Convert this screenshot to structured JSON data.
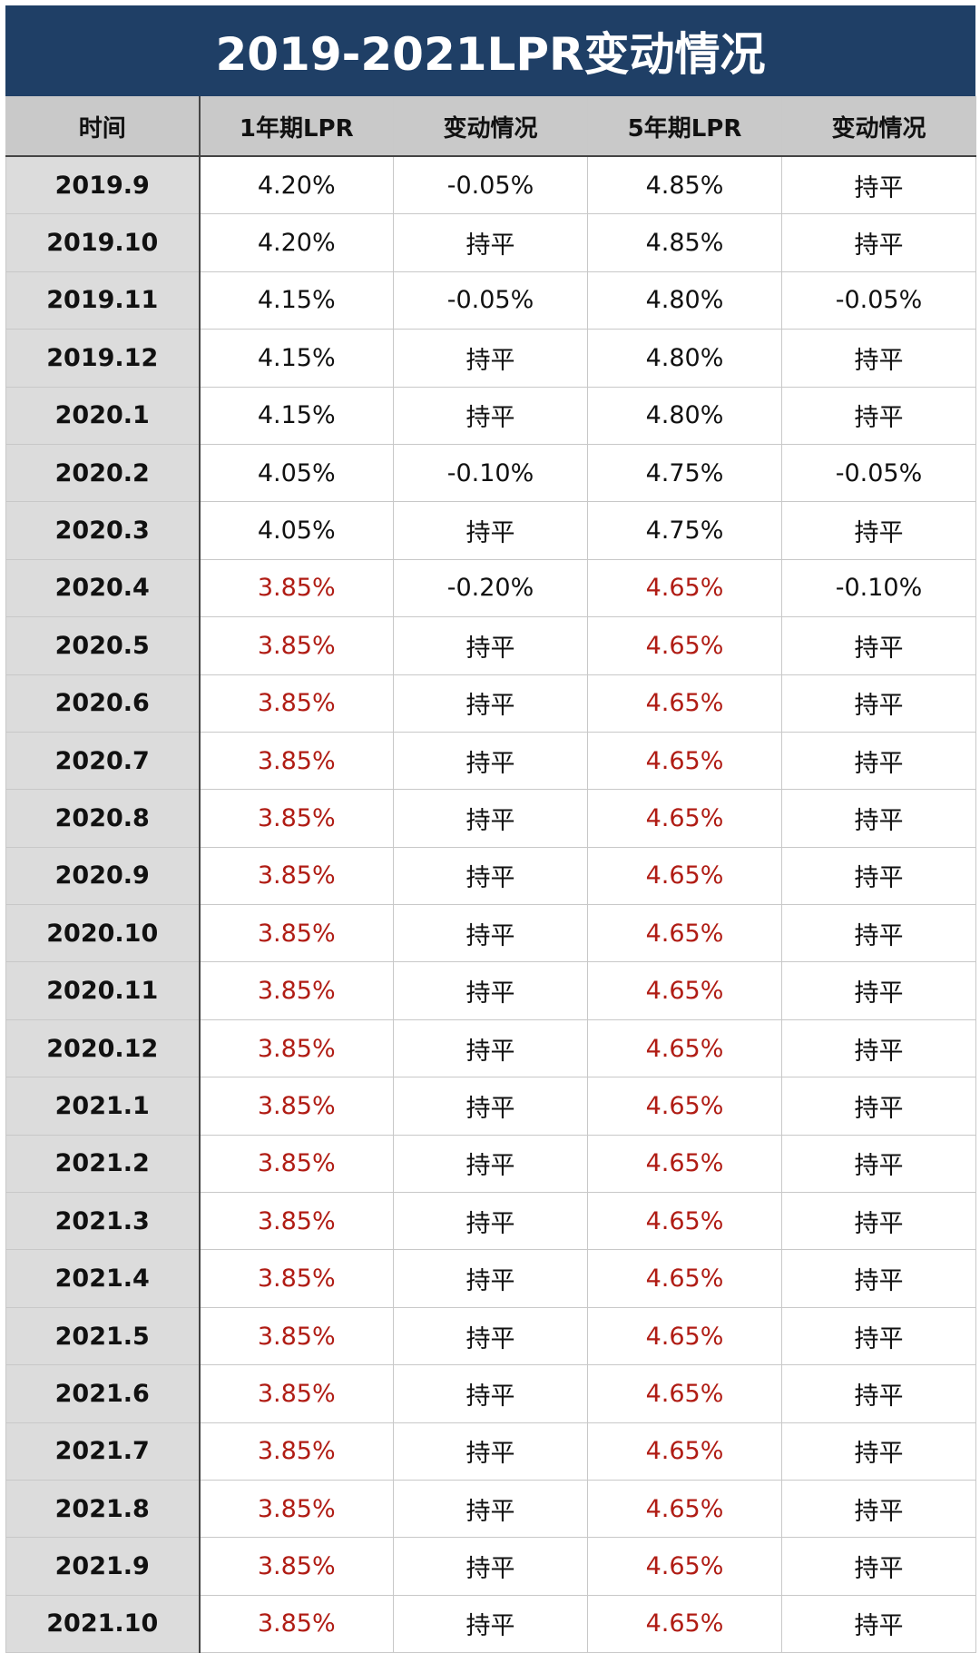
{
  "title": "2019-2021LPR变动情况",
  "chart_data": {
    "type": "table",
    "title": "2019-2021LPR变动情况",
    "columns": [
      "时间",
      "1年期LPR",
      "变动情况",
      "5年期LPR",
      "变动情况"
    ],
    "rows": [
      [
        "2019.9",
        "4.20%",
        "-0.05%",
        "4.85%",
        "持平"
      ],
      [
        "2019.10",
        "4.20%",
        "持平",
        "4.85%",
        "持平"
      ],
      [
        "2019.11",
        "4.15%",
        "-0.05%",
        "4.80%",
        "-0.05%"
      ],
      [
        "2019.12",
        "4.15%",
        "持平",
        "4.80%",
        "持平"
      ],
      [
        "2020.1",
        "4.15%",
        "持平",
        "4.80%",
        "持平"
      ],
      [
        "2020.2",
        "4.05%",
        "-0.10%",
        "4.75%",
        "-0.05%"
      ],
      [
        "2020.3",
        "4.05%",
        "持平",
        "4.75%",
        "持平"
      ],
      [
        "2020.4",
        "3.85%",
        "-0.20%",
        "4.65%",
        "-0.10%"
      ],
      [
        "2020.5",
        "3.85%",
        "持平",
        "4.65%",
        "持平"
      ],
      [
        "2020.6",
        "3.85%",
        "持平",
        "4.65%",
        "持平"
      ],
      [
        "2020.7",
        "3.85%",
        "持平",
        "4.65%",
        "持平"
      ],
      [
        "2020.8",
        "3.85%",
        "持平",
        "4.65%",
        "持平"
      ],
      [
        "2020.9",
        "3.85%",
        "持平",
        "4.65%",
        "持平"
      ],
      [
        "2020.10",
        "3.85%",
        "持平",
        "4.65%",
        "持平"
      ],
      [
        "2020.11",
        "3.85%",
        "持平",
        "4.65%",
        "持平"
      ],
      [
        "2020.12",
        "3.85%",
        "持平",
        "4.65%",
        "持平"
      ],
      [
        "2021.1",
        "3.85%",
        "持平",
        "4.65%",
        "持平"
      ],
      [
        "2021.2",
        "3.85%",
        "持平",
        "4.65%",
        "持平"
      ],
      [
        "2021.3",
        "3.85%",
        "持平",
        "4.65%",
        "持平"
      ],
      [
        "2021.4",
        "3.85%",
        "持平",
        "4.65%",
        "持平"
      ],
      [
        "2021.5",
        "3.85%",
        "持平",
        "4.65%",
        "持平"
      ],
      [
        "2021.6",
        "3.85%",
        "持平",
        "4.65%",
        "持平"
      ],
      [
        "2021.7",
        "3.85%",
        "持平",
        "4.65%",
        "持平"
      ],
      [
        "2021.8",
        "3.85%",
        "持平",
        "4.65%",
        "持平"
      ],
      [
        "2021.9",
        "3.85%",
        "持平",
        "4.65%",
        "持平"
      ],
      [
        "2021.10",
        "3.85%",
        "持平",
        "4.65%",
        "持平"
      ]
    ],
    "highlight_rate_from_row": 7,
    "colors": {
      "title_bg": "#1f3f66",
      "header_bg": "#c9c9c9",
      "period_bg": "#dcdcdc",
      "highlight_text": "#b01c14",
      "text": "#111111"
    }
  }
}
